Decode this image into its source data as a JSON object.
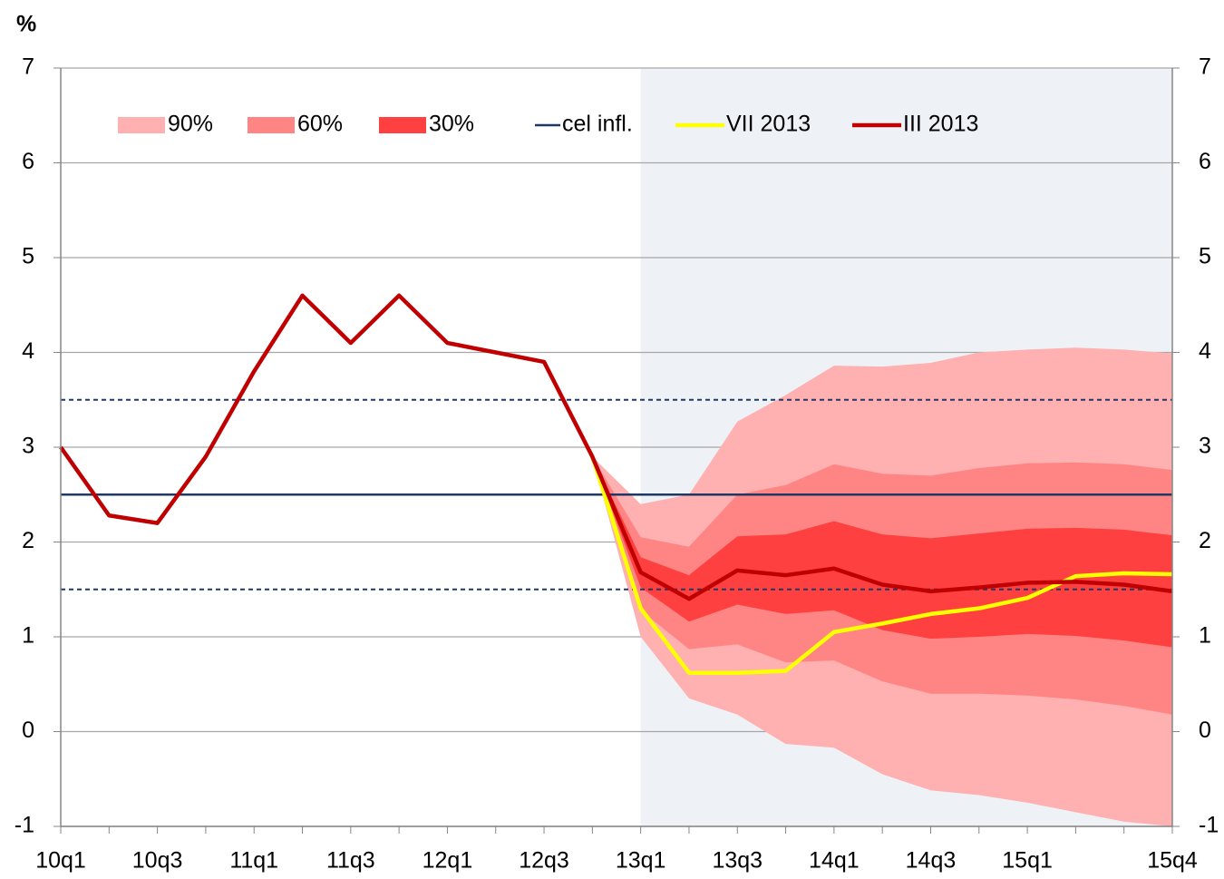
{
  "chart_data": {
    "type": "fan",
    "y_label": "%",
    "categories": [
      "10q1",
      null,
      "10q3",
      null,
      "11q1",
      null,
      "11q3",
      null,
      "12q1",
      null,
      "12q3",
      null,
      "13q1",
      null,
      "13q3",
      null,
      "14q1",
      null,
      "14q3",
      null,
      "15q1",
      null,
      null,
      "15q4"
    ],
    "forecast_from": "13q1",
    "forecast_color": "#eef2f7",
    "ylim": [
      -1,
      7
    ],
    "yticks": [
      -1,
      0,
      1,
      2,
      3,
      4,
      5,
      6,
      7
    ],
    "grid": true,
    "bands": [
      {
        "name": "90%",
        "color": "#ffb0b0",
        "upper": [
          null,
          null,
          null,
          null,
          null,
          null,
          null,
          null,
          null,
          null,
          null,
          2.9,
          2.4,
          2.5,
          3.27,
          3.55,
          3.86,
          3.85,
          3.89,
          4.0,
          4.03,
          4.05,
          4.03,
          3.99
        ],
        "lower": [
          null,
          null,
          null,
          null,
          null,
          null,
          null,
          null,
          null,
          null,
          null,
          2.9,
          1.0,
          0.35,
          0.18,
          -0.13,
          -0.17,
          -0.45,
          -0.62,
          -0.67,
          -0.75,
          -0.85,
          -0.95,
          -1.0
        ]
      },
      {
        "name": "60%",
        "color": "#ff8585",
        "upper": [
          null,
          null,
          null,
          null,
          null,
          null,
          null,
          null,
          null,
          null,
          null,
          2.9,
          2.05,
          1.95,
          2.5,
          2.6,
          2.82,
          2.72,
          2.7,
          2.78,
          2.83,
          2.84,
          2.82,
          2.76
        ],
        "lower": [
          null,
          null,
          null,
          null,
          null,
          null,
          null,
          null,
          null,
          null,
          null,
          2.9,
          1.28,
          0.87,
          0.92,
          0.73,
          0.75,
          0.53,
          0.4,
          0.4,
          0.38,
          0.34,
          0.27,
          0.18
        ]
      },
      {
        "name": "30%",
        "color": "#ff4040",
        "upper": [
          null,
          null,
          null,
          null,
          null,
          null,
          null,
          null,
          null,
          null,
          null,
          2.9,
          1.84,
          1.65,
          2.06,
          2.08,
          2.22,
          2.08,
          2.04,
          2.09,
          2.14,
          2.15,
          2.13,
          2.07
        ],
        "lower": [
          null,
          null,
          null,
          null,
          null,
          null,
          null,
          null,
          null,
          null,
          null,
          2.9,
          1.52,
          1.16,
          1.34,
          1.24,
          1.28,
          1.07,
          0.98,
          1.0,
          1.03,
          1.01,
          0.96,
          0.89
        ]
      }
    ],
    "target": {
      "name": "cel infl.",
      "value": 2.5,
      "color": "#1f3864",
      "band": [
        1.5,
        3.5
      ]
    },
    "series": [
      {
        "name": "VII 2013",
        "color": "#ffff00",
        "values": [
          null,
          null,
          null,
          null,
          null,
          null,
          null,
          null,
          null,
          null,
          null,
          2.9,
          1.3,
          0.62,
          0.62,
          0.64,
          1.05,
          1.14,
          1.24,
          1.3,
          1.41,
          1.64,
          1.67,
          1.66
        ]
      },
      {
        "name": "III 2013",
        "color": "#c00000",
        "values": [
          3.0,
          2.28,
          2.2,
          2.9,
          3.8,
          4.6,
          4.1,
          4.6,
          4.1,
          4.0,
          3.9,
          2.9,
          1.68,
          1.4,
          1.7,
          1.65,
          1.72,
          1.55,
          1.48,
          1.52,
          1.57,
          1.58,
          1.55,
          1.48
        ]
      }
    ]
  }
}
